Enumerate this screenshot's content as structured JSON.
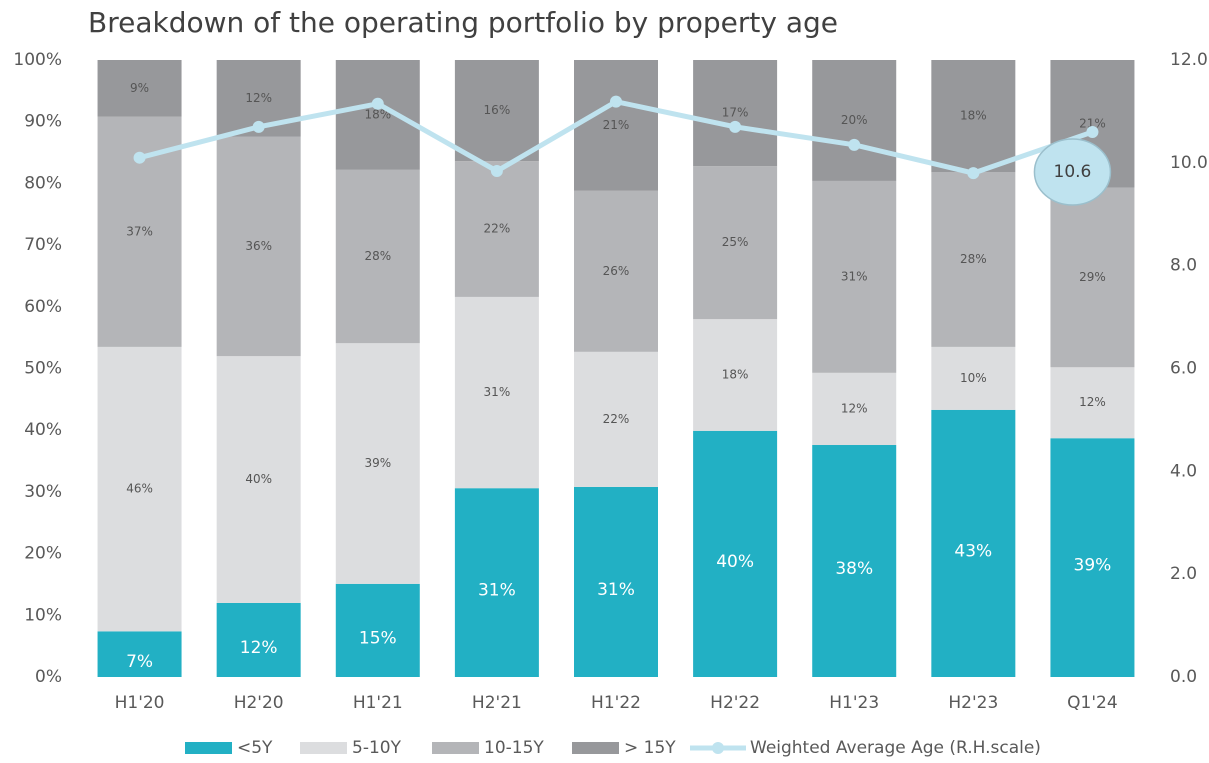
{
  "chart_data": {
    "type": "stacked_bar_line",
    "title": "Breakdown of the operating portfolio by property age",
    "categories": [
      "H1'20",
      "H2'20",
      "H1'21",
      "H2'21",
      "H1'22",
      "H2'22",
      "H1'23",
      "H2'23",
      "Q1'24"
    ],
    "series": [
      {
        "name": "<5Y",
        "color": "#22b0c4",
        "values": [
          7.4,
          12.0,
          15.1,
          30.6,
          30.8,
          39.9,
          37.6,
          43.3,
          38.7
        ],
        "value_labels": [
          "7%",
          "12%",
          "15%",
          "31%",
          "31%",
          "40%",
          "38%",
          "43%",
          "39%"
        ]
      },
      {
        "name": "5-10Y",
        "color": "#dcdddf",
        "values": [
          46.1,
          40.0,
          39.0,
          31.0,
          21.9,
          18.1,
          11.7,
          10.2,
          11.5
        ],
        "value_labels": [
          "46%",
          "40%",
          "39%",
          "31%",
          "22%",
          "18%",
          "12%",
          "10%",
          "12%"
        ]
      },
      {
        "name": "10-15Y",
        "color": "#b4b5b8",
        "values": [
          37.3,
          35.6,
          28.1,
          22.0,
          26.1,
          24.8,
          31.1,
          28.3,
          29.1
        ],
        "value_labels": [
          "37%",
          "36%",
          "28%",
          "22%",
          "26%",
          "25%",
          "31%",
          "28%",
          "29%"
        ]
      },
      {
        "name": "> 15Y",
        "color": "#97989b",
        "values": [
          9.2,
          12.4,
          17.8,
          16.4,
          21.2,
          17.2,
          19.6,
          18.2,
          20.7
        ],
        "value_labels": [
          "9%",
          "12%",
          "18%",
          "16%",
          "21%",
          "17%",
          "20%",
          "18%",
          "21%"
        ]
      },
      {
        "name": "Weighted Average Age (R.H.scale)",
        "color": "#bfe3ef",
        "axis": "y2",
        "type": "line",
        "values": [
          10.1,
          10.7,
          11.15,
          9.84,
          11.19,
          10.7,
          10.35,
          9.8,
          10.6
        ]
      }
    ],
    "ylim": [
      0,
      100
    ],
    "yticks": [
      {
        "value": 0,
        "label": "0%"
      },
      {
        "value": 10,
        "label": "10%"
      },
      {
        "value": 20,
        "label": "20%"
      },
      {
        "value": 30,
        "label": "30%"
      },
      {
        "value": 40,
        "label": "40%"
      },
      {
        "value": 50,
        "label": "50%"
      },
      {
        "value": 60,
        "label": "60%"
      },
      {
        "value": 70,
        "label": "70%"
      },
      {
        "value": 80,
        "label": "80%"
      },
      {
        "value": 90,
        "label": "90%"
      },
      {
        "value": 100,
        "label": "100%"
      }
    ],
    "y2lim": [
      0,
      12
    ],
    "y2ticks": [
      {
        "value": 0,
        "label": "0.0"
      },
      {
        "value": 2,
        "label": "2.0"
      },
      {
        "value": 4,
        "label": "4.0"
      },
      {
        "value": 6,
        "label": "6.0"
      },
      {
        "value": 8,
        "label": "8.0"
      },
      {
        "value": 10,
        "label": "10.0"
      },
      {
        "value": 12,
        "label": "12.0"
      }
    ],
    "legend": "bottom"
  }
}
